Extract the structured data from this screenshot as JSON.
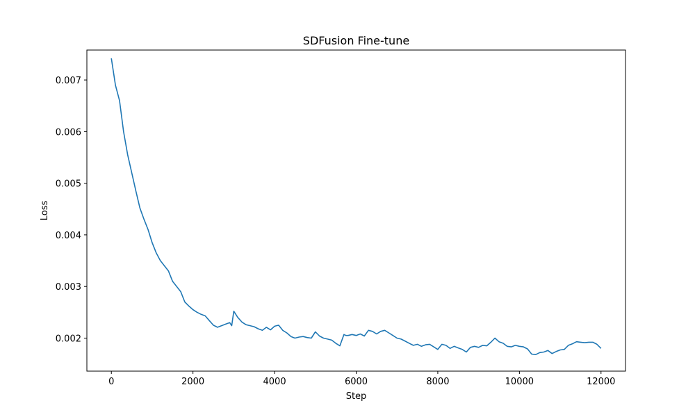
{
  "chart_data": {
    "type": "line",
    "title": "SDFusion Fine-tune",
    "xlabel": "Step",
    "ylabel": "Loss",
    "xlim": [
      -600,
      12600
    ],
    "ylim": [
      0.00136,
      0.00758
    ],
    "xticks": [
      0,
      2000,
      4000,
      6000,
      8000,
      10000,
      12000
    ],
    "xtick_labels": [
      "0",
      "2000",
      "4000",
      "6000",
      "8000",
      "10000",
      "12000"
    ],
    "yticks": [
      0.002,
      0.003,
      0.004,
      0.005,
      0.006,
      0.007
    ],
    "ytick_labels": [
      "0.002",
      "0.003",
      "0.004",
      "0.005",
      "0.006",
      "0.007"
    ],
    "grid": false,
    "series": [
      {
        "color": "#1f77b4",
        "x": [
          0,
          100,
          200,
          300,
          400,
          500,
          600,
          700,
          800,
          900,
          1000,
          1100,
          1200,
          1300,
          1400,
          1500,
          1600,
          1700,
          1800,
          1900,
          2000,
          2100,
          2200,
          2300,
          2400,
          2500,
          2600,
          2700,
          2800,
          2900,
          2950,
          3000,
          3100,
          3200,
          3300,
          3400,
          3500,
          3600,
          3700,
          3800,
          3900,
          4000,
          4100,
          4200,
          4300,
          4400,
          4500,
          4600,
          4700,
          4800,
          4900,
          5000,
          5100,
          5200,
          5300,
          5400,
          5500,
          5600,
          5700,
          5750,
          5800,
          5900,
          6000,
          6100,
          6200,
          6300,
          6400,
          6500,
          6600,
          6700,
          6800,
          6900,
          7000,
          7100,
          7200,
          7300,
          7400,
          7500,
          7600,
          7700,
          7800,
          7900,
          8000,
          8100,
          8200,
          8300,
          8400,
          8500,
          8600,
          8700,
          8800,
          8900,
          9000,
          9100,
          9200,
          9300,
          9400,
          9500,
          9600,
          9700,
          9800,
          9900,
          10000,
          10100,
          10200,
          10300,
          10400,
          10500,
          10600,
          10700,
          10800,
          10900,
          11000,
          11100,
          11200,
          11300,
          11400,
          11500,
          11600,
          11700,
          11800,
          11900,
          12000
        ],
        "y": [
          0.00742,
          0.0069,
          0.0066,
          0.006,
          0.00555,
          0.0052,
          0.00485,
          0.00452,
          0.0043,
          0.0041,
          0.00385,
          0.00365,
          0.0035,
          0.0034,
          0.0033,
          0.0031,
          0.003,
          0.0029,
          0.0027,
          0.00262,
          0.00255,
          0.0025,
          0.00246,
          0.00243,
          0.00234,
          0.00225,
          0.00221,
          0.00224,
          0.00227,
          0.0023,
          0.00224,
          0.00252,
          0.0024,
          0.00231,
          0.00226,
          0.00224,
          0.00222,
          0.00218,
          0.00215,
          0.00221,
          0.00216,
          0.00223,
          0.00225,
          0.00215,
          0.0021,
          0.00203,
          0.002,
          0.00202,
          0.00203,
          0.00201,
          0.002,
          0.00212,
          0.00204,
          0.002,
          0.00198,
          0.00196,
          0.0019,
          0.00185,
          0.00207,
          0.00205,
          0.00205,
          0.00207,
          0.00205,
          0.00208,
          0.00204,
          0.00215,
          0.00213,
          0.00208,
          0.00213,
          0.00215,
          0.0021,
          0.00205,
          0.002,
          0.00198,
          0.00194,
          0.0019,
          0.00186,
          0.00188,
          0.00184,
          0.00187,
          0.00188,
          0.00183,
          0.00178,
          0.00188,
          0.00186,
          0.0018,
          0.00184,
          0.00181,
          0.00178,
          0.00173,
          0.00182,
          0.00184,
          0.00182,
          0.00186,
          0.00185,
          0.00192,
          0.002,
          0.00193,
          0.0019,
          0.00184,
          0.00183,
          0.00186,
          0.00184,
          0.00183,
          0.00179,
          0.00169,
          0.00168,
          0.00172,
          0.00173,
          0.00176,
          0.0017,
          0.00174,
          0.00177,
          0.00178,
          0.00186,
          0.00189,
          0.00193,
          0.00192,
          0.00191,
          0.00192,
          0.00192,
          0.00188,
          0.0018
        ]
      }
    ]
  }
}
